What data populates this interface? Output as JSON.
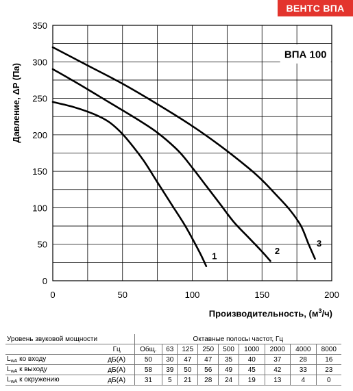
{
  "brand": "ВЕНТС ВПА",
  "chart_data": {
    "type": "line",
    "title": "ВПА 100",
    "ylabel": "Давление, ΔP (Па)",
    "xlabel": "Производительность, (м³/ч)",
    "xlabel_main": "Производительность, (м",
    "xlabel_sup": "3",
    "xlabel_end": "/ч)",
    "xlim": [
      0,
      200
    ],
    "ylim": [
      0,
      350
    ],
    "xticks": [
      0,
      50,
      100,
      150,
      200
    ],
    "yticks": [
      0,
      50,
      100,
      150,
      200,
      250,
      300,
      350
    ],
    "grid": true,
    "series": [
      {
        "name": "1",
        "x": [
          0,
          15,
          30,
          40,
          48,
          55,
          65,
          75,
          85,
          95,
          105,
          110
        ],
        "y": [
          245,
          238,
          228,
          218,
          205,
          190,
          165,
          135,
          105,
          75,
          40,
          20
        ]
      },
      {
        "name": "2",
        "x": [
          0,
          20,
          40,
          60,
          75,
          90,
          100,
          110,
          120,
          130,
          140,
          150,
          156
        ],
        "y": [
          290,
          268,
          245,
          222,
          203,
          178,
          155,
          130,
          105,
          80,
          60,
          40,
          27
        ]
      },
      {
        "name": "3",
        "x": [
          0,
          25,
          50,
          75,
          100,
          120,
          140,
          150,
          160,
          170,
          178,
          183,
          188
        ],
        "y": [
          320,
          295,
          270,
          242,
          212,
          185,
          155,
          138,
          118,
          97,
          75,
          52,
          30
        ]
      }
    ]
  },
  "table": {
    "title": "Уровень звуковой мощности",
    "bands_title": "Октавные полосы частот, Гц",
    "hz": "Гц",
    "columns": [
      "Общ.",
      "63",
      "125",
      "250",
      "500",
      "1000",
      "2000",
      "4000",
      "8000"
    ],
    "rows": [
      {
        "label_main": "L",
        "label_sub": "wA",
        "label_rest": " ко входу",
        "unit": "дБ(А)",
        "values": [
          "50",
          "30",
          "47",
          "47",
          "35",
          "40",
          "37",
          "28",
          "16"
        ]
      },
      {
        "label_main": "L",
        "label_sub": "wA",
        "label_rest": " к выходу",
        "unit": "дБ(А)",
        "values": [
          "58",
          "39",
          "50",
          "56",
          "49",
          "45",
          "42",
          "33",
          "23"
        ]
      },
      {
        "label_main": "L",
        "label_sub": "wA",
        "label_rest": " к окружению",
        "unit": "дБ(А)",
        "values": [
          "31",
          "5",
          "21",
          "28",
          "24",
          "19",
          "13",
          "4",
          "0"
        ]
      }
    ]
  }
}
